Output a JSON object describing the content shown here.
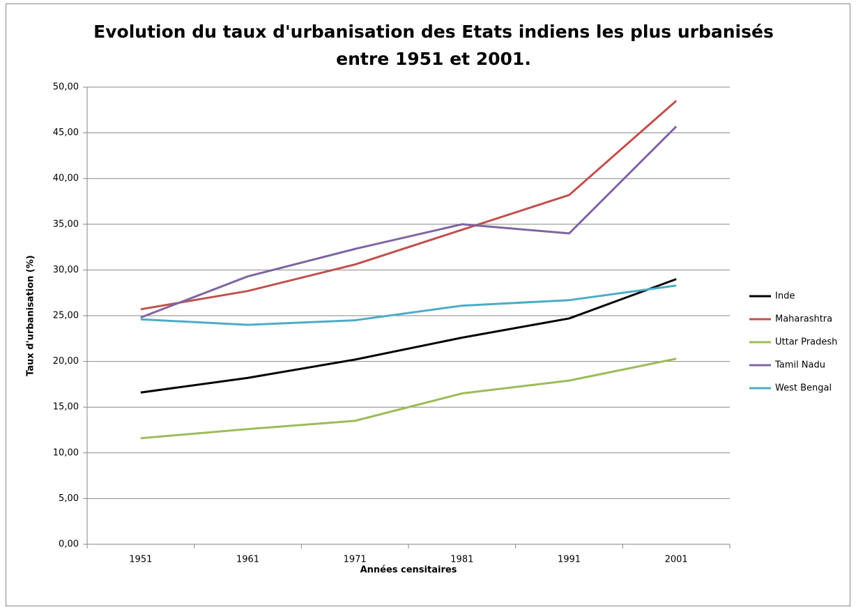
{
  "chart_data": {
    "type": "line",
    "title": [
      "Evolution du taux d'urbanisation des Etats indiens les plus urbanisés",
      "entre 1951 et 2001."
    ],
    "x_label": "Années censitaires",
    "y_label": "Taux d'urbanisation (%)",
    "categories": [
      "1951",
      "1961",
      "1971",
      "1981",
      "1991",
      "2001"
    ],
    "series": [
      {
        "name": "Inde",
        "color": "#000000",
        "values": [
          16.6,
          18.2,
          20.2,
          22.6,
          24.7,
          29.0
        ]
      },
      {
        "name": "Maharashtra",
        "color": "#c0504d",
        "values": [
          25.7,
          27.7,
          30.6,
          34.4,
          38.2,
          48.5
        ]
      },
      {
        "name": "Uttar Pradesh",
        "color": "#9bbb59",
        "values": [
          11.6,
          12.6,
          13.5,
          16.5,
          17.9,
          20.3
        ]
      },
      {
        "name": "Tamil Nadu",
        "color": "#8064a2",
        "values": [
          24.8,
          29.3,
          32.3,
          35.0,
          34.0,
          45.7
        ]
      },
      {
        "name": "West Bengal",
        "color": "#4bacc6",
        "values": [
          24.6,
          24.0,
          24.5,
          26.1,
          26.7,
          28.3
        ]
      }
    ],
    "ylim": [
      0,
      50
    ],
    "yticks": [
      {
        "value": 0,
        "label": "0,00"
      },
      {
        "value": 5,
        "label": "5,00"
      },
      {
        "value": 10,
        "label": "10,00"
      },
      {
        "value": 15,
        "label": "15,00"
      },
      {
        "value": 20,
        "label": "20,00"
      },
      {
        "value": 25,
        "label": "25,00"
      },
      {
        "value": 30,
        "label": "30,00"
      },
      {
        "value": 35,
        "label": "35,00"
      },
      {
        "value": 40,
        "label": "40,00"
      },
      {
        "value": 45,
        "label": "45,00"
      },
      {
        "value": 50,
        "label": "50,00"
      }
    ],
    "grid": true,
    "legend": "right"
  }
}
